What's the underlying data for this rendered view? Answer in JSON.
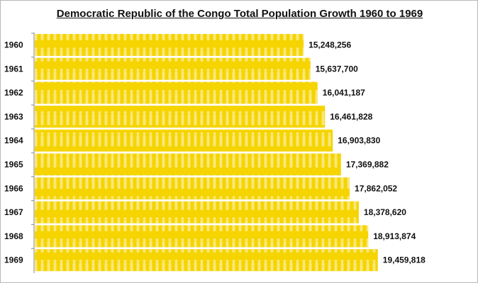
{
  "chart_data": {
    "type": "bar",
    "orientation": "horizontal",
    "title": "Democratic Republic of the Congo Total Population Growth 1960 to 1969",
    "categories": [
      "1960",
      "1961",
      "1962",
      "1963",
      "1964",
      "1965",
      "1966",
      "1967",
      "1968",
      "1969"
    ],
    "values": [
      15248256,
      15637700,
      16041187,
      16461828,
      16903830,
      17369882,
      17862052,
      18378620,
      18913874,
      19459818
    ],
    "value_labels": [
      "15,248,256",
      "15,637,700",
      "16,041,187",
      "16,461,828",
      "16,903,830",
      "17,369,882",
      "17,862,052",
      "18,378,620",
      "18,913,874",
      "19,459,818"
    ],
    "xlim": [
      0,
      25000000
    ],
    "grid": false,
    "bar_color": "#f5d400",
    "pattern_color": "#fae77a"
  }
}
